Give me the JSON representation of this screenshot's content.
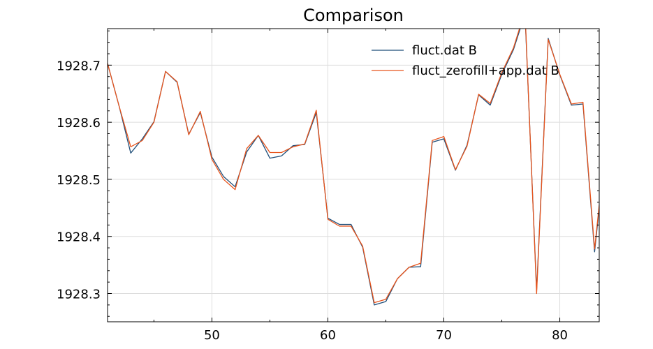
{
  "chart_data": {
    "type": "line",
    "title": "Comparison",
    "xlabel": "",
    "ylabel": "",
    "xlim": [
      41,
      83.4
    ],
    "ylim": [
      1928.2505,
      1928.764
    ],
    "xticks": [
      50,
      60,
      70,
      80
    ],
    "yticks": [
      1928.3,
      1928.4,
      1928.5,
      1928.6,
      1928.7
    ],
    "ytick_labels": [
      "1928.3",
      "1928.4",
      "1928.5",
      "1928.6",
      "1928.7"
    ],
    "xtick_labels": [
      "50",
      "60",
      "70",
      "80"
    ],
    "grid": true,
    "legend_position": "top-right",
    "x": [
      41,
      42,
      43,
      44,
      45,
      46,
      47,
      48,
      49,
      50,
      51,
      52,
      53,
      54,
      55,
      56,
      57,
      58,
      59,
      60,
      61,
      62,
      63,
      64,
      65,
      66,
      67,
      68,
      69,
      70,
      71,
      72,
      73,
      74,
      75,
      76,
      77,
      78,
      79,
      80,
      81,
      82,
      83,
      83.4
    ],
    "series": [
      {
        "name": "fluct.dat B",
        "color": "#1f4e79",
        "values": [
          1928.703,
          1928.628,
          1928.546,
          1928.571,
          1928.601,
          1928.689,
          1928.67,
          1928.579,
          1928.617,
          1928.539,
          1928.505,
          1928.487,
          1928.548,
          1928.577,
          1928.537,
          1928.541,
          1928.559,
          1928.561,
          1928.617,
          1928.432,
          1928.421,
          1928.421,
          1928.381,
          1928.28,
          1928.286,
          1928.326,
          1928.346,
          1928.347,
          1928.565,
          1928.571,
          1928.516,
          1928.56,
          1928.648,
          1928.63,
          1928.684,
          1928.727,
          1928.79,
          1928.305,
          1928.747,
          1928.683,
          1928.63,
          1928.632,
          1928.373,
          1928.45
        ]
      },
      {
        "name": "fluct_zerofill+app.dat B",
        "color": "#e8541c",
        "values": [
          1928.703,
          1928.628,
          1928.557,
          1928.568,
          1928.6,
          1928.689,
          1928.671,
          1928.578,
          1928.619,
          1928.535,
          1928.5,
          1928.482,
          1928.554,
          1928.577,
          1928.547,
          1928.547,
          1928.557,
          1928.562,
          1928.621,
          1928.43,
          1928.418,
          1928.418,
          1928.383,
          1928.284,
          1928.29,
          1928.326,
          1928.346,
          1928.353,
          1928.568,
          1928.575,
          1928.517,
          1928.558,
          1928.649,
          1928.633,
          1928.687,
          1928.73,
          1928.795,
          1928.3,
          1928.745,
          1928.684,
          1928.632,
          1928.635,
          1928.378,
          1928.455
        ]
      }
    ]
  }
}
